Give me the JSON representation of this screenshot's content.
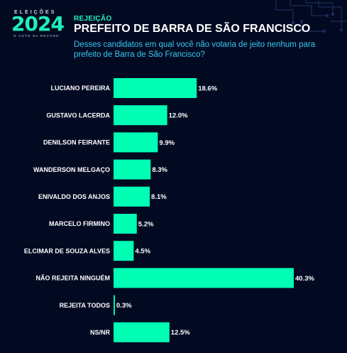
{
  "header": {
    "logo_top": "ELEIÇÕES",
    "logo_year": "2024",
    "logo_sub": "O VOTO NA RECORD",
    "kicker": "REJEIÇÃO",
    "title": "PREFEITO DE BARRA DE SÃO FRANCISCO",
    "question": "Desses candidatos em qual você não votaria de jeito nenhum para prefeito de Barra de São Francisco?"
  },
  "colors": {
    "background": "#020a22",
    "bar": "#00ffb4",
    "accent": "#1ff0b8",
    "question": "#38c8f0"
  },
  "chart_data": {
    "type": "bar",
    "orientation": "horizontal",
    "categories": [
      "LUCIANO PEREIRA",
      "GUSTAVO LACERDA",
      "DENILSON FEIRANTE",
      "WANDERSON MELGAÇO",
      "ENIVALDO DOS ANJOS",
      "MARCELO FIRMINO",
      "ELCIMAR DE SOUZA ALVES",
      "NÃO REJEITA NINGUÉM",
      "REJEITA TODOS",
      "NS/NR"
    ],
    "values": [
      18.6,
      12.0,
      9.9,
      8.3,
      8.1,
      5.2,
      4.5,
      40.3,
      0.3,
      12.5
    ],
    "value_labels": [
      "18.6%",
      "12.0%",
      "9.9%",
      "8.3%",
      "8.1%",
      "5.2%",
      "4.5%",
      "40.3%",
      "0.3%",
      "12.5%"
    ],
    "unit": "%",
    "xlim": [
      0,
      40.3
    ],
    "grid": false,
    "legend": "none"
  }
}
